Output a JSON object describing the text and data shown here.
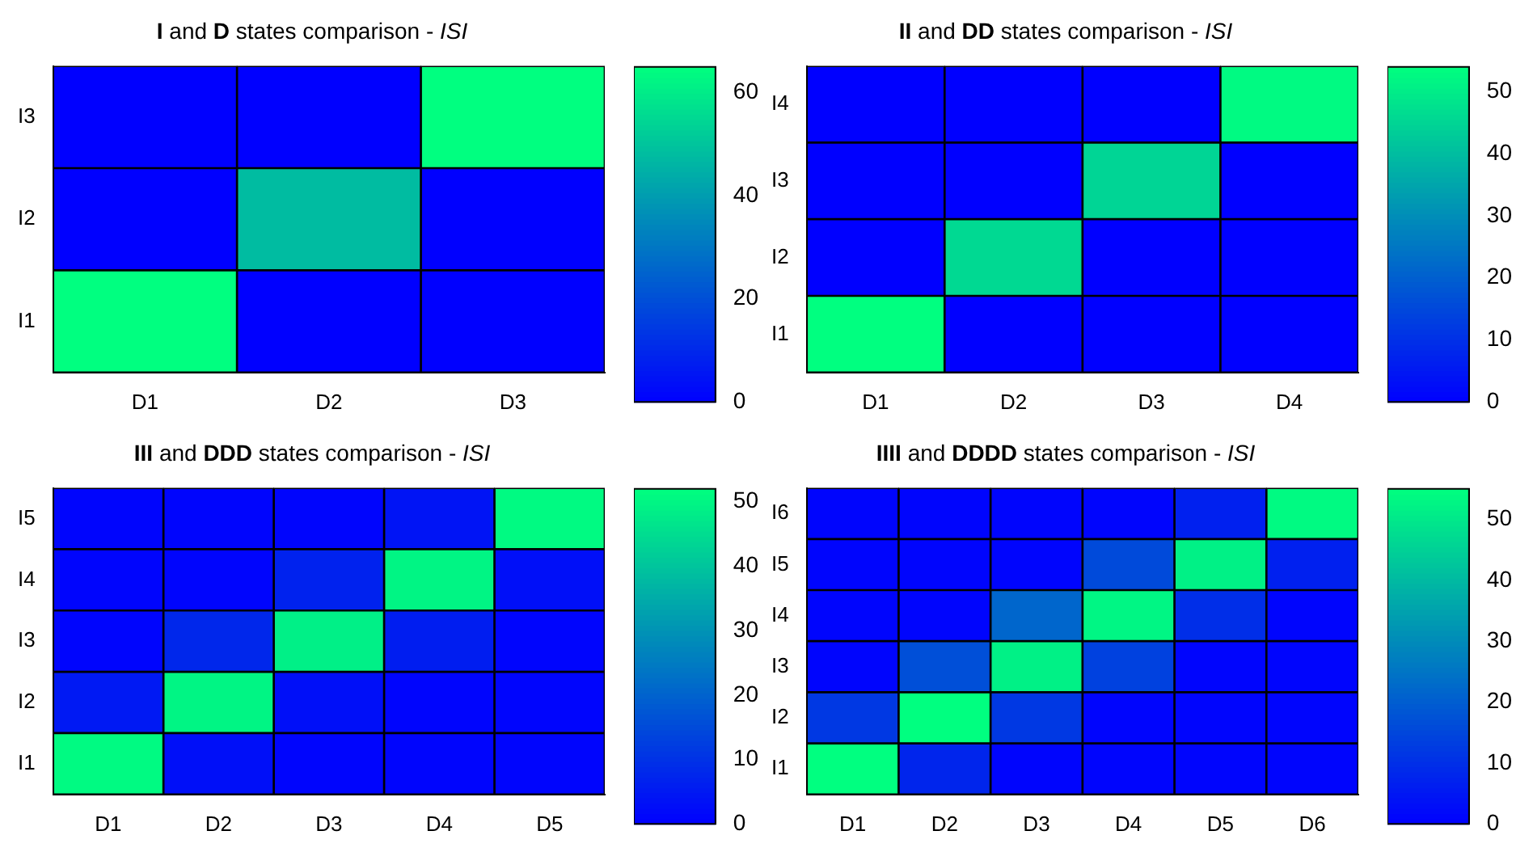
{
  "chart_data": [
    {
      "type": "heatmap",
      "title": "I and D states comparison - ISI",
      "categories": [
        "D1",
        "D2",
        "D3"
      ],
      "y_categories": [
        "I3",
        "I2",
        "I1"
      ],
      "cells": [
        [
          0,
          0,
          65
        ],
        [
          0,
          48,
          0
        ],
        [
          65,
          0,
          0
        ]
      ],
      "clim": [
        0,
        65
      ],
      "cticks": [
        0,
        20,
        40,
        60
      ]
    },
    {
      "type": "heatmap",
      "title": "II and DD states comparison - ISI",
      "categories": [
        "D1",
        "D2",
        "D3",
        "D4"
      ],
      "y_categories": [
        "I4",
        "I3",
        "I2",
        "I1"
      ],
      "cells": [
        [
          0,
          0,
          0,
          53
        ],
        [
          0,
          0,
          45,
          0
        ],
        [
          0,
          46,
          0,
          0
        ],
        [
          54,
          0,
          0,
          0
        ]
      ],
      "clim": [
        0,
        54
      ],
      "cticks": [
        0,
        10,
        20,
        30,
        40,
        50
      ]
    },
    {
      "type": "heatmap",
      "title": "III and DDD states comparison - ISI",
      "categories": [
        "D1",
        "D2",
        "D3",
        "D4",
        "D5"
      ],
      "y_categories": [
        "I5",
        "I4",
        "I3",
        "I2",
        "I1"
      ],
      "cells": [
        [
          1,
          1,
          1,
          4,
          51
        ],
        [
          1,
          1,
          7,
          50,
          3
        ],
        [
          1,
          8,
          49,
          6,
          1
        ],
        [
          5,
          50,
          3,
          1,
          1
        ],
        [
          51,
          3,
          1,
          1,
          1
        ]
      ],
      "clim": [
        0,
        52
      ],
      "cticks": [
        0,
        10,
        20,
        30,
        40,
        50
      ]
    },
    {
      "type": "heatmap",
      "title": "IIII and DDDD states comparison - ISI",
      "categories": [
        "D1",
        "D2",
        "D3",
        "D4",
        "D5",
        "D6"
      ],
      "y_categories": [
        "I6",
        "I5",
        "I4",
        "I3",
        "I2",
        "I1"
      ],
      "cells": [
        [
          1,
          1,
          1,
          1,
          7,
          54
        ],
        [
          1,
          1,
          1,
          16,
          52,
          7
        ],
        [
          1,
          1,
          22,
          53,
          10,
          1
        ],
        [
          1,
          17,
          52,
          14,
          1,
          1
        ],
        [
          12,
          55,
          12,
          1,
          1,
          1
        ],
        [
          55,
          8,
          1,
          1,
          1,
          1
        ]
      ],
      "clim": [
        0,
        55
      ],
      "cticks": [
        0,
        10,
        20,
        30,
        40,
        50
      ]
    }
  ]
}
